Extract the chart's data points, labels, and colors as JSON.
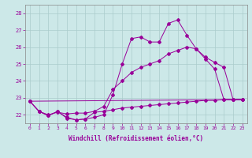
{
  "xlabel": "Windchill (Refroidissement éolien,°C)",
  "background_color": "#cce8e8",
  "line_color": "#990099",
  "grid_color": "#aacccc",
  "xlim": [
    -0.5,
    23.5
  ],
  "ylim": [
    21.5,
    28.5
  ],
  "yticks": [
    22,
    23,
    24,
    25,
    26,
    27,
    28
  ],
  "xticks": [
    0,
    1,
    2,
    3,
    4,
    5,
    6,
    7,
    8,
    9,
    10,
    11,
    12,
    13,
    14,
    15,
    16,
    17,
    18,
    19,
    20,
    21,
    22,
    23
  ],
  "line1_x": [
    0,
    1,
    2,
    3,
    4,
    5,
    6,
    7,
    8,
    9,
    10,
    11,
    12,
    13,
    14,
    15,
    16,
    17,
    18,
    19,
    20,
    21,
    22,
    23
  ],
  "line1_y": [
    22.8,
    22.2,
    21.95,
    22.2,
    21.8,
    21.7,
    21.75,
    22.15,
    22.2,
    22.3,
    22.4,
    22.45,
    22.5,
    22.55,
    22.6,
    22.65,
    22.7,
    22.75,
    22.8,
    22.85,
    22.85,
    22.9,
    22.9,
    22.9
  ],
  "line2_x": [
    0,
    1,
    2,
    3,
    4,
    5,
    6,
    7,
    8,
    9,
    10,
    11,
    12,
    13,
    14,
    15,
    16,
    17,
    18,
    19,
    20,
    21,
    22,
    23
  ],
  "line2_y": [
    22.8,
    22.2,
    21.95,
    22.2,
    21.85,
    21.7,
    21.75,
    21.85,
    22.0,
    23.2,
    25.0,
    26.5,
    26.6,
    26.3,
    26.3,
    27.4,
    27.6,
    26.7,
    25.9,
    25.3,
    24.7,
    22.9,
    22.9,
    22.9
  ],
  "line3_x": [
    0,
    1,
    2,
    3,
    4,
    5,
    6,
    7,
    8,
    9,
    10,
    11,
    12,
    13,
    14,
    15,
    16,
    17,
    18,
    19,
    20,
    21,
    22,
    23
  ],
  "line3_y": [
    22.8,
    22.2,
    22.0,
    22.15,
    22.05,
    22.1,
    22.1,
    22.2,
    22.5,
    23.5,
    24.0,
    24.5,
    24.8,
    25.0,
    25.2,
    25.6,
    25.8,
    26.0,
    25.9,
    25.4,
    25.1,
    24.8,
    22.9,
    22.9
  ],
  "line4_x": [
    0,
    23
  ],
  "line4_y": [
    22.8,
    22.9
  ]
}
